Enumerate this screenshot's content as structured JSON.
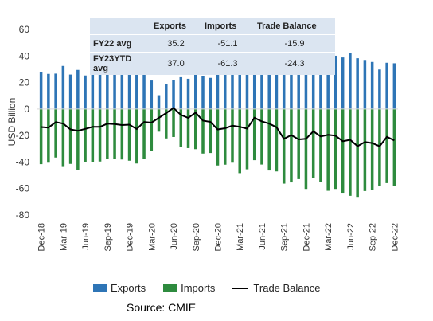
{
  "summary_table": {
    "headers": [
      "",
      "Exports",
      "Imports",
      "Trade Balance"
    ],
    "rows": [
      {
        "label": "FY22 avg",
        "exports": "35.2",
        "imports": "-51.1",
        "balance": "-15.9"
      },
      {
        "label": "FY23YTD avg",
        "exports": "37.0",
        "imports": "-61.3",
        "balance": "-24.3"
      }
    ]
  },
  "source": "Source:  CMIE",
  "chart_data": {
    "type": "bar",
    "ylabel": "USD Billion",
    "ylim": [
      -80,
      60
    ],
    "yticks": [
      60,
      40,
      20,
      0,
      -20,
      -40,
      -60,
      -80
    ],
    "x_tick_labels": [
      "Dec-18",
      "Mar-19",
      "Jun-19",
      "Sep-19",
      "Dec-19",
      "Mar-20",
      "Jun-20",
      "Sep-20",
      "Dec-20",
      "Mar-21",
      "Jun-21",
      "Sep-21",
      "Dec-21",
      "Mar-22",
      "Jun-22",
      "Sep-22",
      "Dec-22"
    ],
    "categories": [
      "Dec-18",
      "Jan-19",
      "Feb-19",
      "Mar-19",
      "Apr-19",
      "May-19",
      "Jun-19",
      "Jul-19",
      "Aug-19",
      "Sep-19",
      "Oct-19",
      "Nov-19",
      "Dec-19",
      "Jan-20",
      "Feb-20",
      "Mar-20",
      "Apr-20",
      "May-20",
      "Jun-20",
      "Jul-20",
      "Aug-20",
      "Sep-20",
      "Oct-20",
      "Nov-20",
      "Dec-20",
      "Jan-21",
      "Feb-21",
      "Mar-21",
      "Apr-21",
      "May-21",
      "Jun-21",
      "Jul-21",
      "Aug-21",
      "Sep-21",
      "Oct-21",
      "Nov-21",
      "Dec-21",
      "Jan-22",
      "Feb-22",
      "Mar-22",
      "Apr-22",
      "May-22",
      "Jun-22",
      "Jul-22",
      "Aug-22",
      "Sep-22",
      "Oct-22",
      "Nov-22",
      "Dec-22"
    ],
    "series": [
      {
        "name": "Exports",
        "kind": "bar",
        "color": "#2e75b6",
        "values": [
          28,
          26.5,
          26.7,
          32.5,
          26,
          29.5,
          25.3,
          26.3,
          26.1,
          26.3,
          26.1,
          26,
          27.2,
          26,
          27.7,
          21.5,
          10.4,
          19.1,
          21.9,
          24,
          22.8,
          27.6,
          24.8,
          23.5,
          27.2,
          27.5,
          27.9,
          35,
          30.7,
          32,
          32.5,
          35.4,
          33.3,
          33.8,
          35.7,
          30,
          37.8,
          35.2,
          34.6,
          42.2,
          40.2,
          38.9,
          42.3,
          38.3,
          37,
          35.5,
          29.8,
          34.9,
          34.5
        ]
      },
      {
        "name": "Imports",
        "kind": "bar",
        "color": "#2e8b3e",
        "values": [
          -41.6,
          -40.5,
          -36.6,
          -43.7,
          -41.4,
          -45.9,
          -40.3,
          -39.8,
          -39.6,
          -37.4,
          -37.4,
          -38.1,
          -39,
          -41.1,
          -37.5,
          -31.8,
          -17.1,
          -22.2,
          -21.1,
          -28.5,
          -29.5,
          -30.3,
          -33.6,
          -33.2,
          -42.6,
          -42,
          -40.5,
          -48.4,
          -45.5,
          -38.6,
          -41.9,
          -46.4,
          -47.1,
          -56.3,
          -55.4,
          -52.9,
          -60.3,
          -52,
          -55.3,
          -61.7,
          -60.3,
          -63.2,
          -65.5,
          -66.3,
          -61.9,
          -61.2,
          -57.9,
          -55.9,
          -58.2
        ]
      },
      {
        "name": "Trade Balance",
        "kind": "line",
        "color": "#000000",
        "values": [
          -13.6,
          -14,
          -9.9,
          -11,
          -15.4,
          -16.4,
          -15,
          -13.5,
          -13.5,
          -11.1,
          -11.3,
          -12.1,
          -11.8,
          -15.1,
          -9.8,
          -10.3,
          -6.7,
          -3.1,
          0.8,
          -4.5,
          -6.7,
          -2.7,
          -8.8,
          -9.7,
          -15.4,
          -14.5,
          -12.6,
          -13.4,
          -14.8,
          -6.6,
          -9.4,
          -11,
          -13.8,
          -22.5,
          -19.7,
          -22.9,
          -22.5,
          -16.8,
          -20.7,
          -19.5,
          -20.1,
          -24.3,
          -23.2,
          -28,
          -24.9,
          -25.7,
          -28.1,
          -21,
          -23.7
        ]
      }
    ]
  }
}
